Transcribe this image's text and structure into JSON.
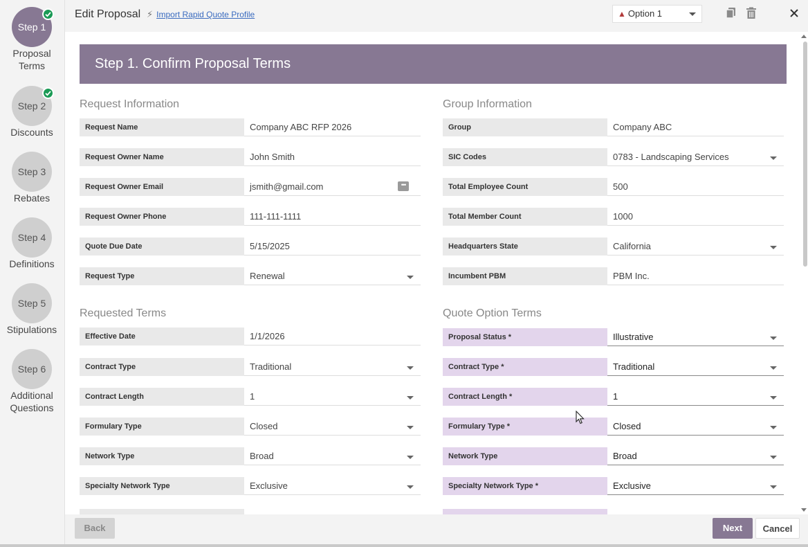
{
  "steps": [
    {
      "badge": "Step 1",
      "label_line1": "Proposal",
      "label_line2": "Terms",
      "active": true,
      "completed": true
    },
    {
      "badge": "Step 2",
      "label_line1": "Discounts",
      "label_line2": "",
      "active": false,
      "completed": true
    },
    {
      "badge": "Step 3",
      "label_line1": "Rebates",
      "label_line2": "",
      "active": false,
      "completed": false
    },
    {
      "badge": "Step 4",
      "label_line1": "Definitions",
      "label_line2": "",
      "active": false,
      "completed": false
    },
    {
      "badge": "Step 5",
      "label_line1": "Stipulations",
      "label_line2": "",
      "active": false,
      "completed": false
    },
    {
      "badge": "Step 6",
      "label_line1": "Additional",
      "label_line2": "Questions",
      "active": false,
      "completed": false
    }
  ],
  "header": {
    "title": "Edit Proposal",
    "import_link": "Import Rapid Quote Profile",
    "option_value": "Option 1"
  },
  "banner": "Step 1. Confirm Proposal Terms",
  "request_info": {
    "title": "Request Information",
    "fields": [
      {
        "label": "Request Name",
        "value": "Company ABC RFP 2026"
      },
      {
        "label": "Request Owner Name",
        "value": "John Smith"
      },
      {
        "label": "Request Owner Email",
        "value": "jsmith@gmail.com"
      },
      {
        "label": "Request Owner Phone",
        "value": "111-111-1111"
      },
      {
        "label": "Quote Due Date",
        "value": "5/15/2025"
      },
      {
        "label": "Request Type",
        "value": "Renewal"
      }
    ]
  },
  "group_info": {
    "title": "Group Information",
    "fields": [
      {
        "label": "Group",
        "value": "Company ABC"
      },
      {
        "label": "SIC Codes",
        "value": "0783 - Landscaping Services"
      },
      {
        "label": "Total Employee Count",
        "value": "500"
      },
      {
        "label": "Total Member Count",
        "value": "1000"
      },
      {
        "label": "Headquarters State",
        "value": "California"
      },
      {
        "label": "Incumbent PBM",
        "value": "PBM Inc."
      }
    ]
  },
  "requested_terms": {
    "title": "Requested Terms",
    "fields": [
      {
        "label": "Effective Date",
        "value": "1/1/2026"
      },
      {
        "label": "Contract Type",
        "value": "Traditional"
      },
      {
        "label": "Contract Length",
        "value": "1"
      },
      {
        "label": "Formulary Type",
        "value": "Closed"
      },
      {
        "label": "Network Type",
        "value": "Broad"
      },
      {
        "label": "Specialty Network Type",
        "value": "Exclusive"
      }
    ]
  },
  "quote_terms": {
    "title": "Quote Option Terms",
    "fields": [
      {
        "label": "Proposal Status *",
        "value": "Illustrative"
      },
      {
        "label": "Contract Type *",
        "value": "Traditional"
      },
      {
        "label": "Contract Length *",
        "value": "1"
      },
      {
        "label": "Formulary Type *",
        "value": "Closed"
      },
      {
        "label": "Network Type",
        "value": "Broad"
      },
      {
        "label": "Specialty Network Type *",
        "value": "Exclusive"
      }
    ]
  },
  "footer": {
    "back": "Back",
    "next": "Next",
    "cancel": "Cancel"
  },
  "colors": {
    "accent": "#877893",
    "required_label_bg": "#e3d5ec",
    "success": "#1a9a55"
  }
}
